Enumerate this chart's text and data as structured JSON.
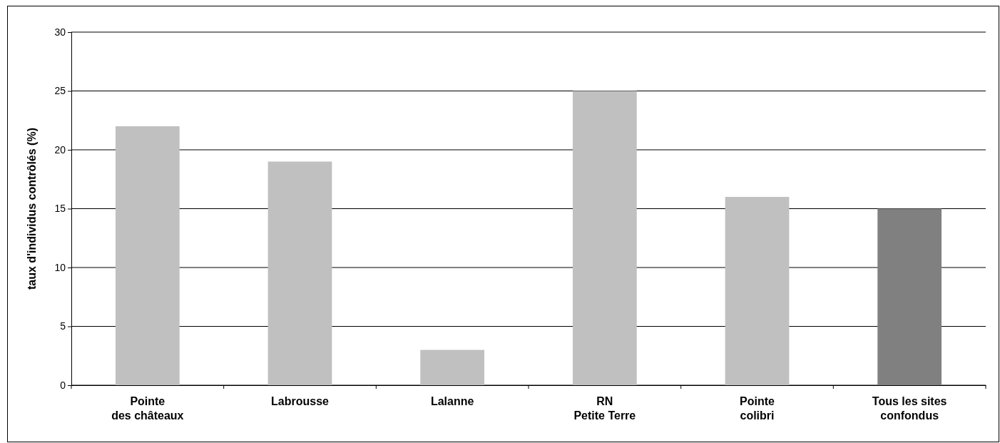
{
  "chart_data": {
    "type": "bar",
    "ylabel": "taux d'individus contrôlés (%)",
    "categories": [
      "Pointe\ndes châteaux",
      "Labrousse",
      "Lalanne",
      "RN\nPetite Terre",
      "Pointe\ncolibri",
      "Tous les sites\nconfondus"
    ],
    "values": [
      22,
      19,
      3,
      25,
      16,
      15
    ],
    "colors": [
      "#c0c0c0",
      "#c0c0c0",
      "#c0c0c0",
      "#c0c0c0",
      "#c0c0c0",
      "#808080"
    ],
    "ylim": [
      0,
      30
    ],
    "yticks": [
      0,
      5,
      10,
      15,
      20,
      25,
      30
    ],
    "grid": "y"
  }
}
